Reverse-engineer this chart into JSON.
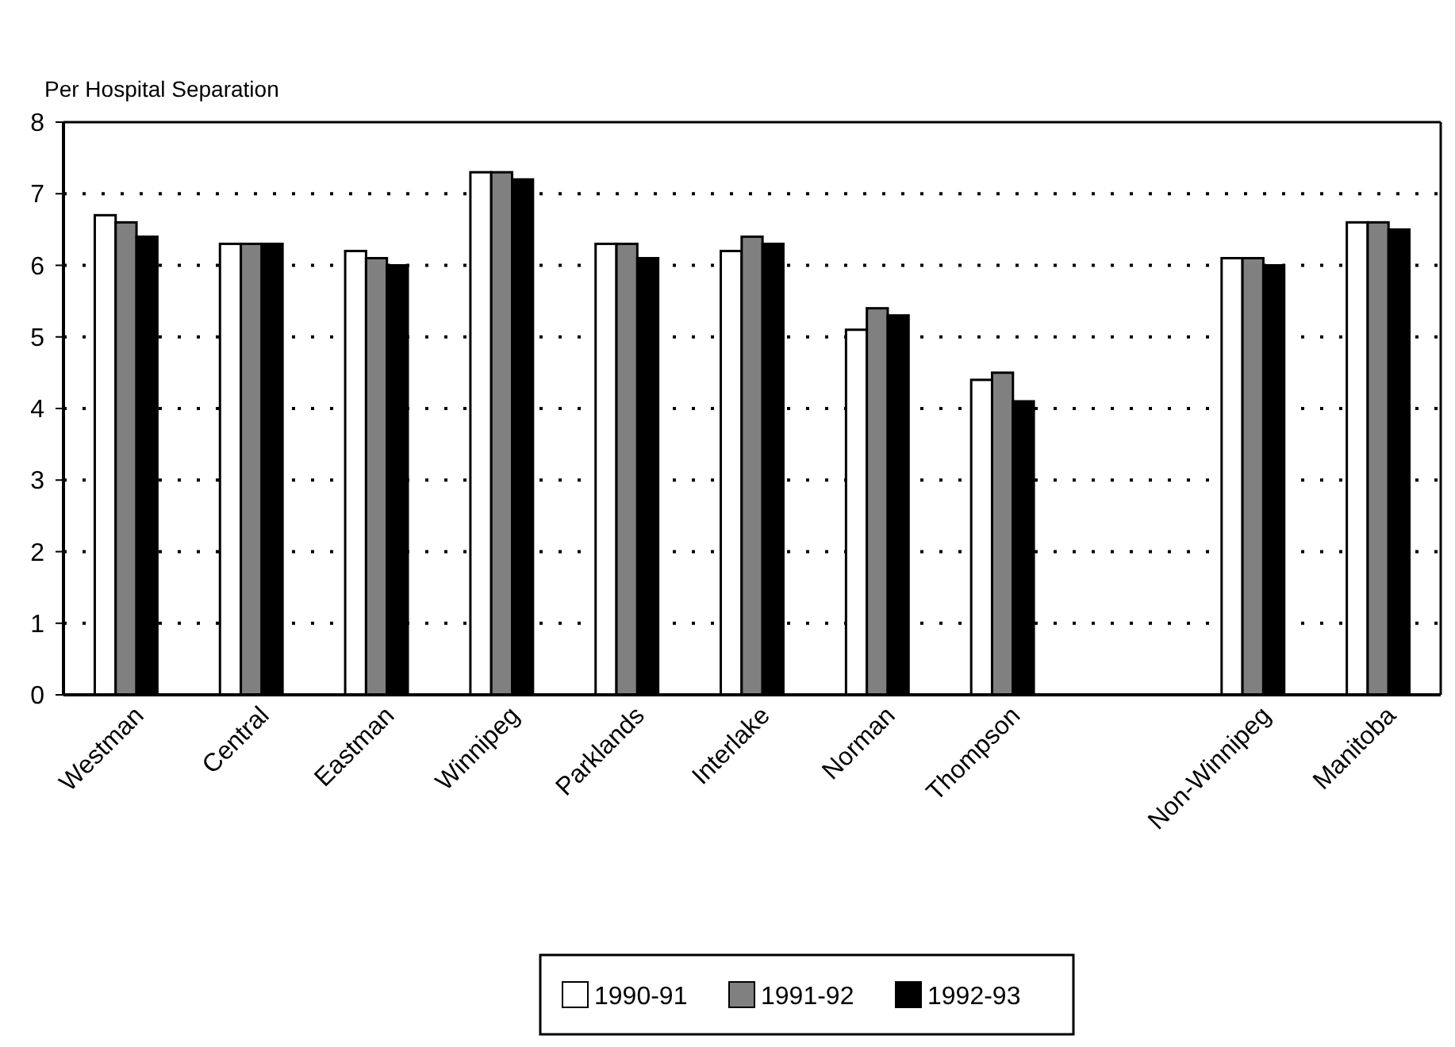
{
  "chart_data": {
    "type": "bar",
    "ylabel": "Per Hospital Separation",
    "categories": [
      "Westman",
      "Central",
      "Eastman",
      "Winnipeg",
      "Parklands",
      "Interlake",
      "Norman",
      "Thompson",
      null,
      "Non-Winnipeg",
      "Manitoba"
    ],
    "series": [
      {
        "name": "1990-91",
        "color": "#ffffff",
        "values": [
          6.7,
          6.3,
          6.2,
          7.3,
          6.3,
          6.2,
          5.1,
          4.4,
          null,
          6.1,
          6.6
        ]
      },
      {
        "name": "1991-92",
        "color": "#808080",
        "values": [
          6.6,
          6.3,
          6.1,
          7.3,
          6.3,
          6.4,
          5.4,
          4.5,
          null,
          6.1,
          6.6
        ]
      },
      {
        "name": "1992-93",
        "color": "#000000",
        "values": [
          6.4,
          6.3,
          6.0,
          7.2,
          6.1,
          6.3,
          5.3,
          4.1,
          null,
          6.0,
          6.5
        ]
      }
    ],
    "ylim": [
      0,
      8
    ],
    "yticks": [
      0,
      1,
      2,
      3,
      4,
      5,
      6,
      7,
      8
    ],
    "grid": "y",
    "legend": "bottom"
  }
}
